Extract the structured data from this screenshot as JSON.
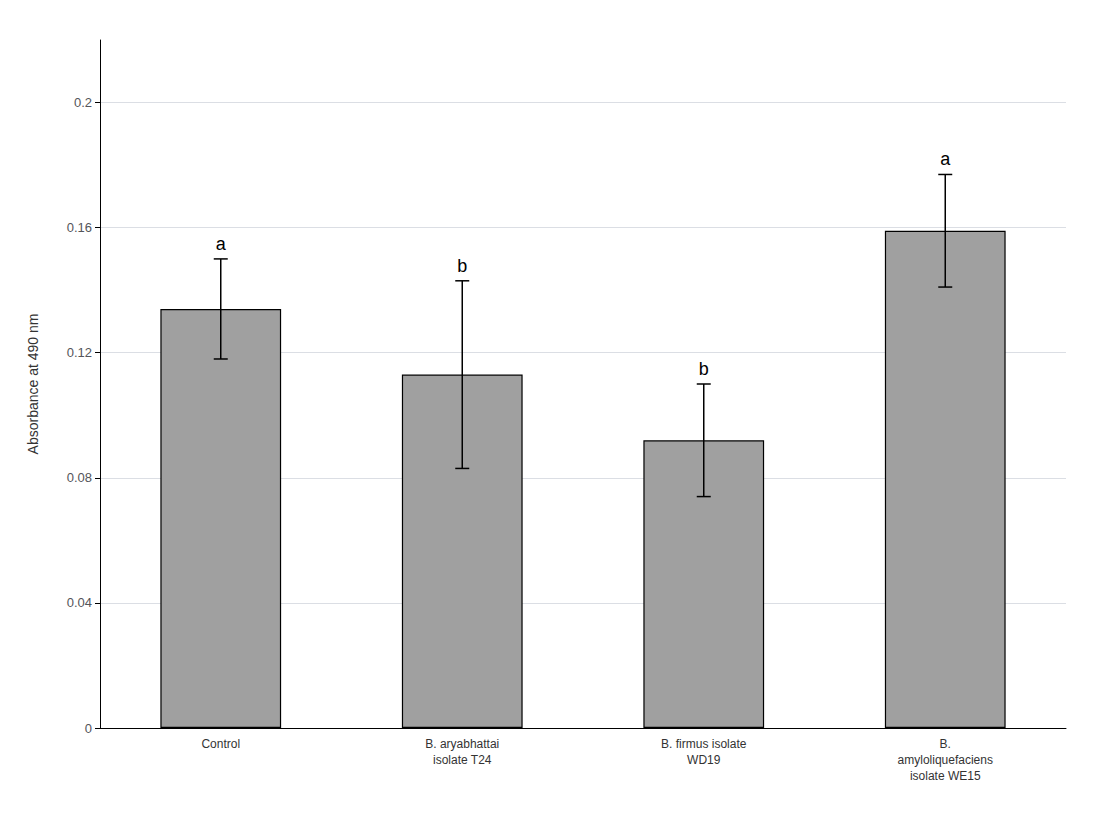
{
  "chart_data": {
    "type": "bar",
    "categories": [
      "Control",
      "B. aryabhattai\nisolate T24",
      "B. firmus isolate\nWD19",
      "B.\namyloliquefaciens\nisolate WE15"
    ],
    "values": [
      0.134,
      0.113,
      0.092,
      0.159
    ],
    "errors": [
      0.016,
      0.03,
      0.018,
      0.018
    ],
    "letters": [
      "a",
      "b",
      "b",
      "a"
    ],
    "color": "#a0a0a0",
    "ylabel": "Absorbance at 490 nm",
    "ylim": [
      0,
      0.22
    ],
    "yticks": [
      0,
      0.04,
      0.08,
      0.12,
      0.16,
      0.2
    ],
    "grid": true
  }
}
